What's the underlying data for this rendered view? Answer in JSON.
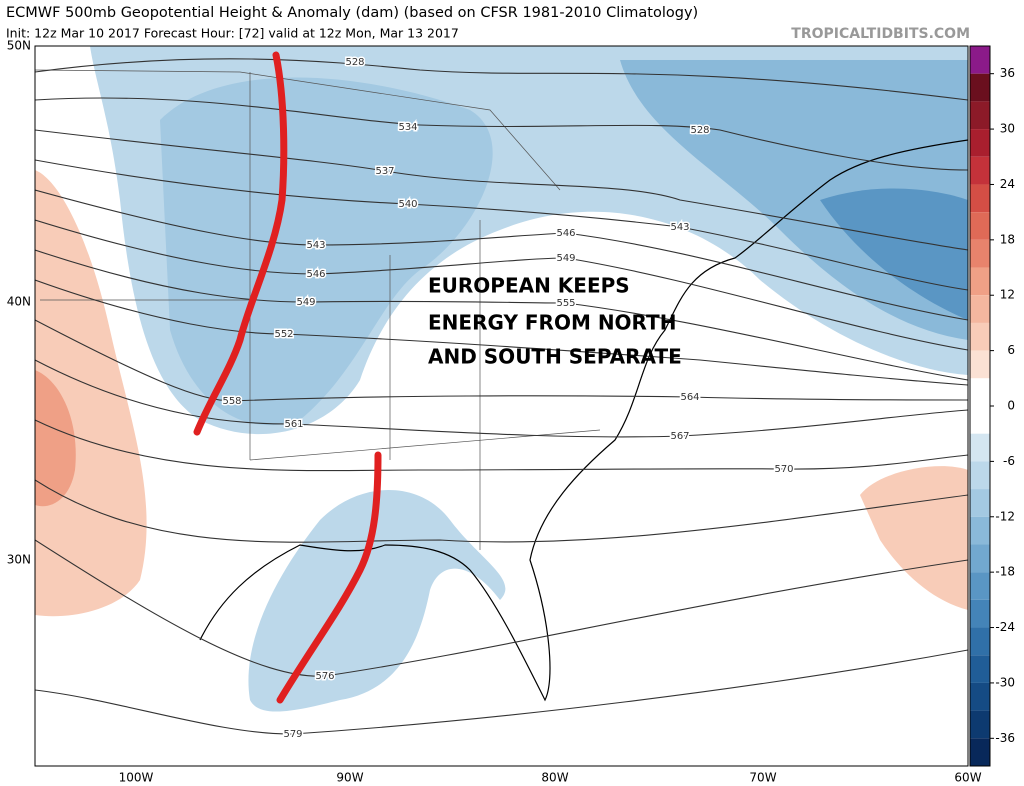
{
  "header": {
    "title": "ECMWF 500mb Geopotential Height & Anomaly (dam) (based on CFSR 1981-2010 Climatology)",
    "subtitle": "Init: 12z Mar 10 2017   Forecast Hour: [72]   valid at 12z Mon, Mar 13 2017",
    "source": "TROPICALTIDBITS.COM"
  },
  "map": {
    "lat_labels": [
      "50N",
      "40N",
      "30N"
    ],
    "lon_labels": [
      "100W",
      "90W",
      "80W",
      "70W",
      "60W"
    ],
    "contour_labels": [
      528,
      528,
      534,
      537,
      540,
      543,
      543,
      546,
      546,
      549,
      549,
      552,
      555,
      558,
      561,
      564,
      567,
      570,
      576,
      579
    ],
    "annotation": [
      "EUROPEAN KEEPS",
      "ENERGY FROM NORTH",
      "AND SOUTH SEPARATE"
    ]
  },
  "colorbar": {
    "ticks": [
      36,
      30,
      24,
      18,
      12,
      6,
      0,
      -6,
      -12,
      -18,
      -24,
      -30,
      -36
    ],
    "bins": [
      39,
      36,
      33,
      30,
      27,
      24,
      21,
      18,
      15,
      12,
      9,
      6,
      3,
      0,
      -3,
      -6,
      -9,
      -12,
      -15,
      -18,
      -21,
      -24,
      -27,
      -30,
      -33,
      -36,
      -39
    ],
    "colors": [
      "#8b1a89",
      "#6a0f1e",
      "#8c1a28",
      "#a91f2e",
      "#c4323a",
      "#d44e45",
      "#df6a57",
      "#e8836c",
      "#efa086",
      "#f4b79f",
      "#f8ccb8",
      "#fbe1d4",
      "#ffffff",
      "#ffffff",
      "#d4e6f1",
      "#bcd8ea",
      "#a3c9e2",
      "#8ab9d9",
      "#72a8cf",
      "#5a96c4",
      "#4484b8",
      "#3070a8",
      "#205d97",
      "#154b84",
      "#0d3a70",
      "#08285a"
    ]
  }
}
